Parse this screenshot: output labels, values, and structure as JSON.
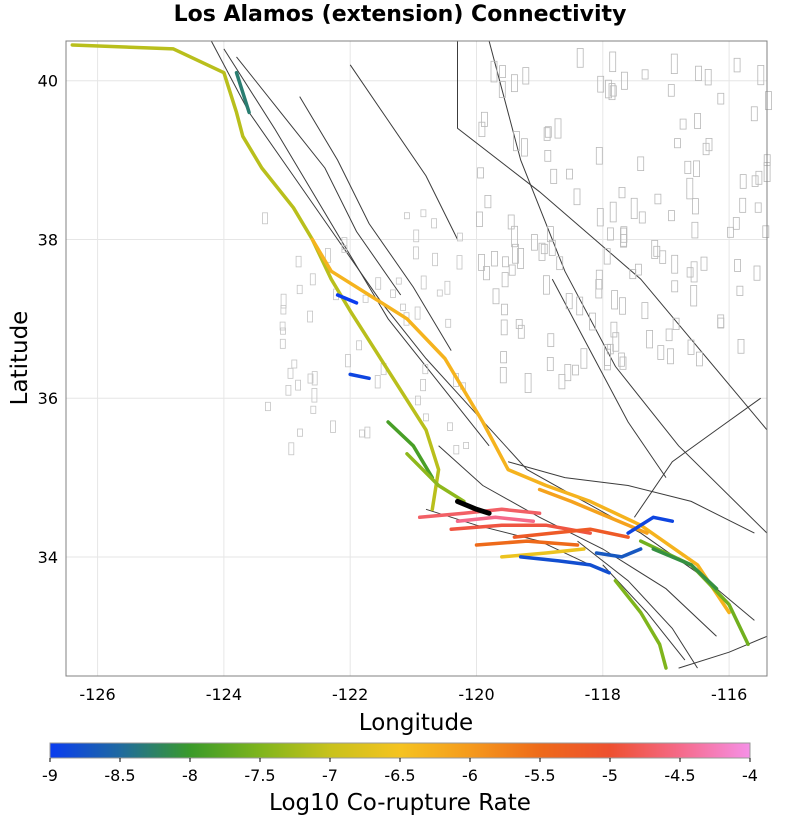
{
  "title": "Los Alamos (extension) Connectivity",
  "x_axis": {
    "label": "Longitude",
    "ticks": [
      "-126",
      "-124",
      "-122",
      "-120",
      "-118",
      "-116"
    ],
    "tick_values": [
      -126,
      -124,
      -122,
      -120,
      -118,
      -116
    ],
    "range": [
      -126.5,
      -115.4
    ]
  },
  "y_axis": {
    "label": "Latitude",
    "ticks": [
      "34",
      "36",
      "38",
      "40"
    ],
    "tick_values": [
      34,
      36,
      38,
      40
    ],
    "range": [
      32.5,
      40.5
    ]
  },
  "colorbar": {
    "label": "Log10 Co-rupture Rate",
    "ticks": [
      "-9",
      "-8.5",
      "-8",
      "-7.5",
      "-7",
      "-6.5",
      "-6",
      "-5.5",
      "-5",
      "-4.5",
      "-4"
    ],
    "tick_values": [
      -9,
      -8.5,
      -8,
      -7.5,
      -7,
      -6.5,
      -6,
      -5.5,
      -5,
      -4.5,
      -4
    ],
    "range": [
      -9,
      -4
    ],
    "stops": [
      {
        "value": -9,
        "color": "#0a3cf0"
      },
      {
        "value": -8.5,
        "color": "#1f6aa0"
      },
      {
        "value": -8,
        "color": "#3a9a2a"
      },
      {
        "value": -7.5,
        "color": "#7fb51c"
      },
      {
        "value": -7,
        "color": "#c8c21c"
      },
      {
        "value": -6.5,
        "color": "#f5c320"
      },
      {
        "value": -6,
        "color": "#f59a1c"
      },
      {
        "value": -5.5,
        "color": "#ee6a1a"
      },
      {
        "value": -5,
        "color": "#ee5030"
      },
      {
        "value": -4.5,
        "color": "#f56a8a"
      },
      {
        "value": -4,
        "color": "#f590e6"
      }
    ]
  },
  "highlight_color": "#000000",
  "fault_color": "#3c3c3c",
  "grid_color": "#e6e6e6"
}
